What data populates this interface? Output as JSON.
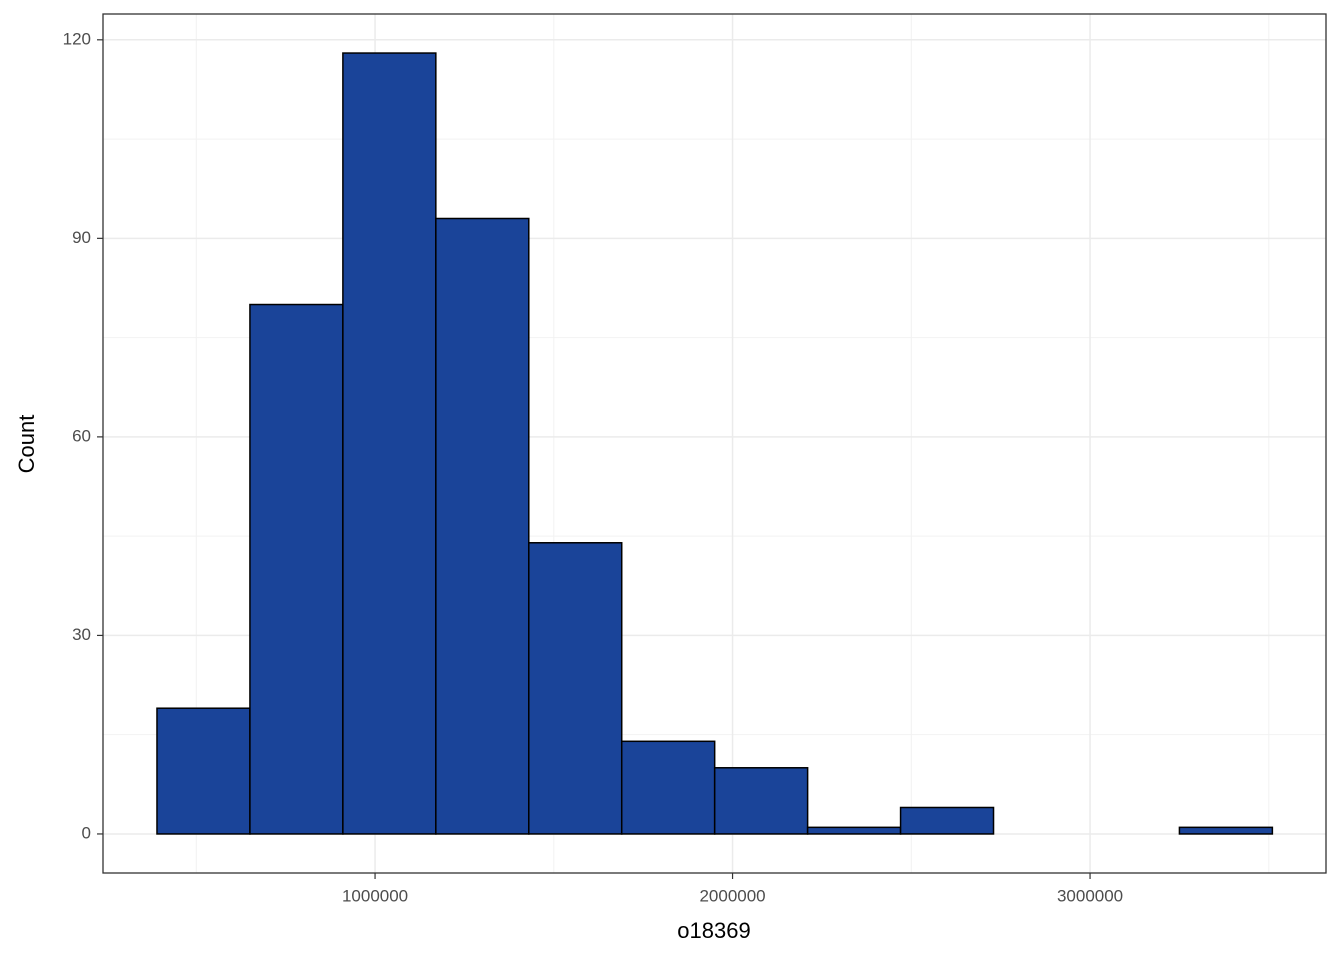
{
  "chart_data": {
    "type": "histogram",
    "x_label": "o18369",
    "y_label": "Count",
    "bins": [
      390000,
      650000,
      910000,
      1170000,
      1430000,
      1690000,
      1950000,
      2210000,
      2470000,
      2730000,
      2990000,
      3250000,
      3510000
    ],
    "values": [
      19,
      80,
      118,
      93,
      44,
      14,
      10,
      1,
      4,
      0,
      0,
      1
    ],
    "color": "#1a4499",
    "edge_color": "#000000",
    "xlim": [
      239000,
      3660000
    ],
    "xticks": [
      1000000,
      2000000,
      3000000
    ],
    "ylim": [
      -5.9,
      123.9
    ],
    "yticks": [
      0,
      30,
      60,
      90,
      120
    ],
    "grid": true
  }
}
